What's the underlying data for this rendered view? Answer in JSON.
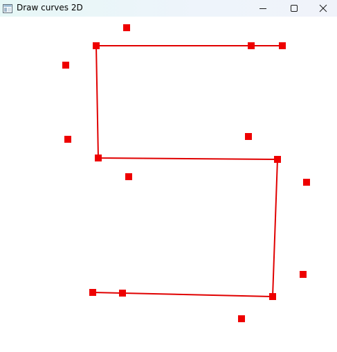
{
  "window": {
    "title": "Draw curves 2D",
    "icon": "app-window-icon",
    "controls": {
      "minimize_icon": "minimize-icon",
      "maximize_icon": "maximize-icon",
      "close_icon": "close-icon"
    }
  },
  "colors": {
    "curve": "#e00000",
    "point": "#ee0000",
    "title_bar": "#e9f5f6"
  }
}
